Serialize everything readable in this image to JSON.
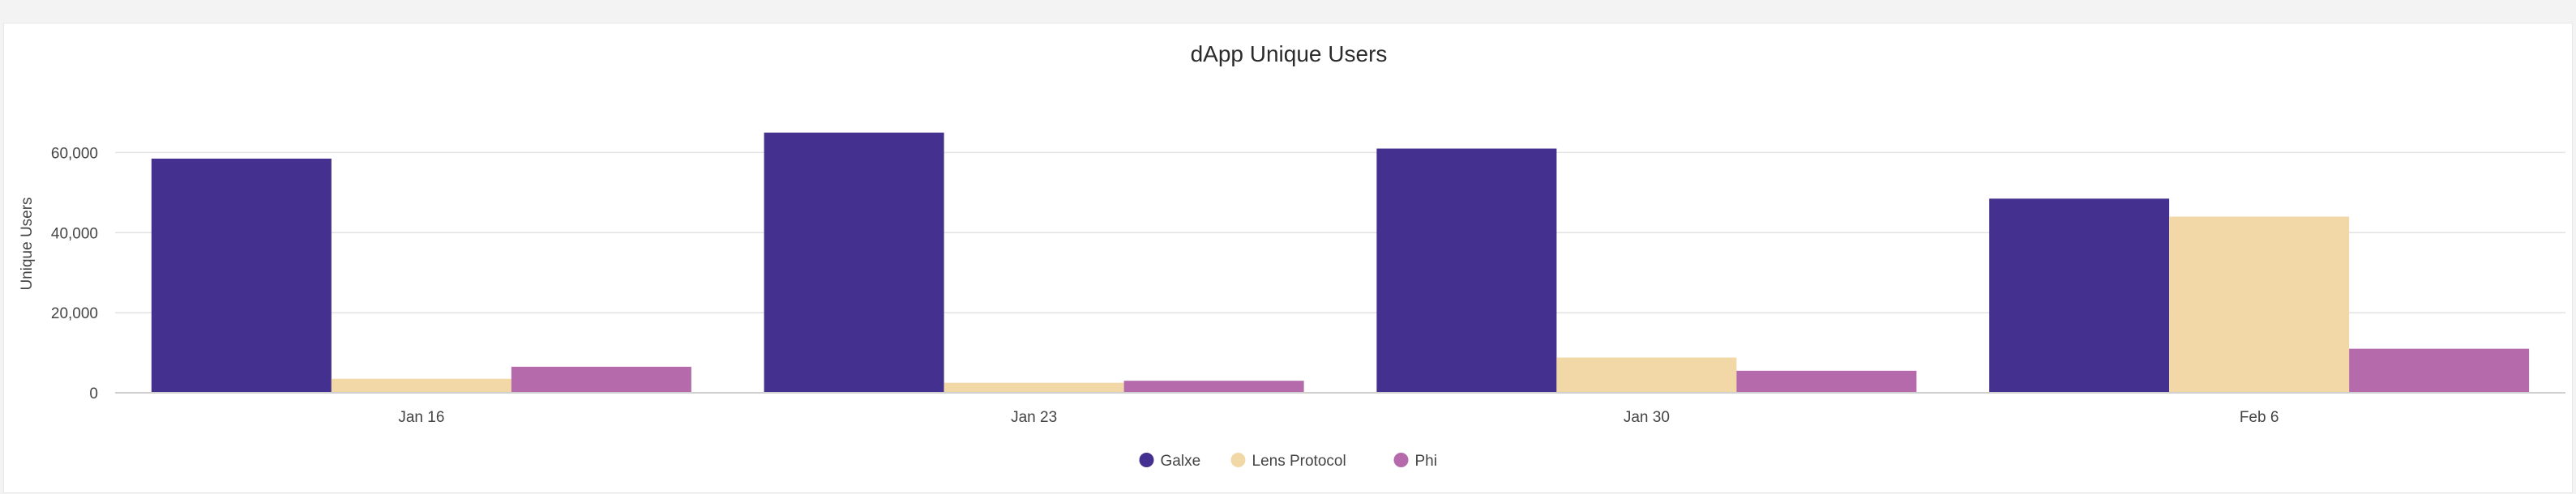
{
  "chart_data": {
    "type": "bar",
    "title": "dApp Unique Users",
    "xlabel": "",
    "ylabel": "Unique Users",
    "ylim": [
      0,
      70000
    ],
    "yticks": [
      0,
      20000,
      40000,
      60000
    ],
    "ytick_labels": [
      "0",
      "20,000",
      "40,000",
      "60,000"
    ],
    "categories": [
      "Jan 16",
      "Jan 23",
      "Jan 30",
      "Feb 6"
    ],
    "series": [
      {
        "name": "Galxe",
        "color": "#44318f",
        "values": [
          58500,
          65000,
          61000,
          48500
        ]
      },
      {
        "name": "Lens Protocol",
        "color": "#f2d8a7",
        "values": [
          3500,
          2500,
          8800,
          44000
        ]
      },
      {
        "name": "Phi",
        "color": "#b46aab",
        "values": [
          6500,
          3000,
          5500,
          11000
        ]
      }
    ],
    "legend_position": "bottom-center",
    "grid": true
  }
}
